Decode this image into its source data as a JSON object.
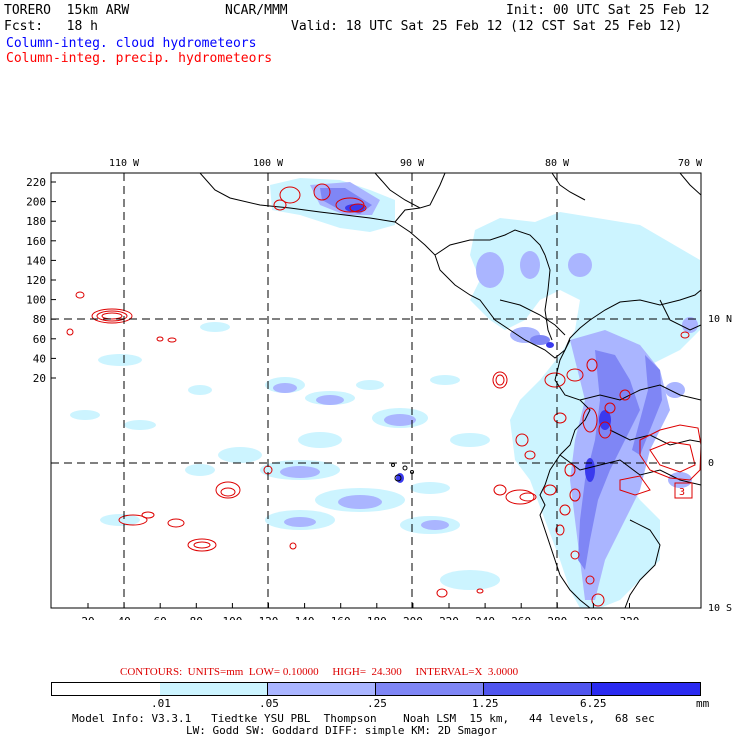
{
  "header": {
    "model": "TORERO  15km ARW",
    "center": "NCAR/MMM",
    "init": "Init: 00 UTC Sat 25 Feb 12",
    "fcst": "Fcst:   18 h",
    "valid": "Valid: 18 UTC Sat 25 Feb 12 (12 CST Sat 25 Feb 12)",
    "field1": "Column-integ. cloud hydrometeors",
    "field2": "Column-integ. precip. hydrometeors"
  },
  "colors": {
    "field1": "#0000ff",
    "field2": "#ff0000",
    "contour": "#dd0000",
    "coast": "#000000",
    "shade1": "#ccf4ff",
    "shade2": "#aab5ff",
    "shade3": "#7f86f5",
    "shade4": "#5055ee",
    "shade5": "#2a2af0"
  },
  "map": {
    "lon_labels": [
      "110 W",
      "100 W",
      "90 W",
      "80 W",
      "70 W"
    ],
    "lat_labels": [
      "10 N",
      "0",
      "10 S"
    ],
    "y_ticks": [
      "220",
      "200",
      "180",
      "160",
      "140",
      "120",
      "100",
      "80",
      "60",
      "40",
      "20"
    ],
    "x_ticks": [
      "20",
      "40",
      "60",
      "80",
      "100",
      "120",
      "140",
      "160",
      "180",
      "200",
      "220",
      "240",
      "260",
      "280",
      "300",
      "320"
    ],
    "max_label": "3"
  },
  "contour_info": "CONTOURS:  UNITS=mm  LOW= 0.10000     HIGH=  24.300     INTERVAL=X  3.0000",
  "colorbar": {
    "ticks": [
      ".01",
      ".05",
      ".25",
      "1.25",
      "6.25"
    ],
    "units": "mm"
  },
  "footer": {
    "line1": "Model Info: V3.3.1   Tiedtke YSU PBL  Thompson    Noah LSM  15 km,   44 levels,   68 sec",
    "line2": "LW: Godd SW: Goddard DIFF: simple KM: 2D Smagor"
  }
}
